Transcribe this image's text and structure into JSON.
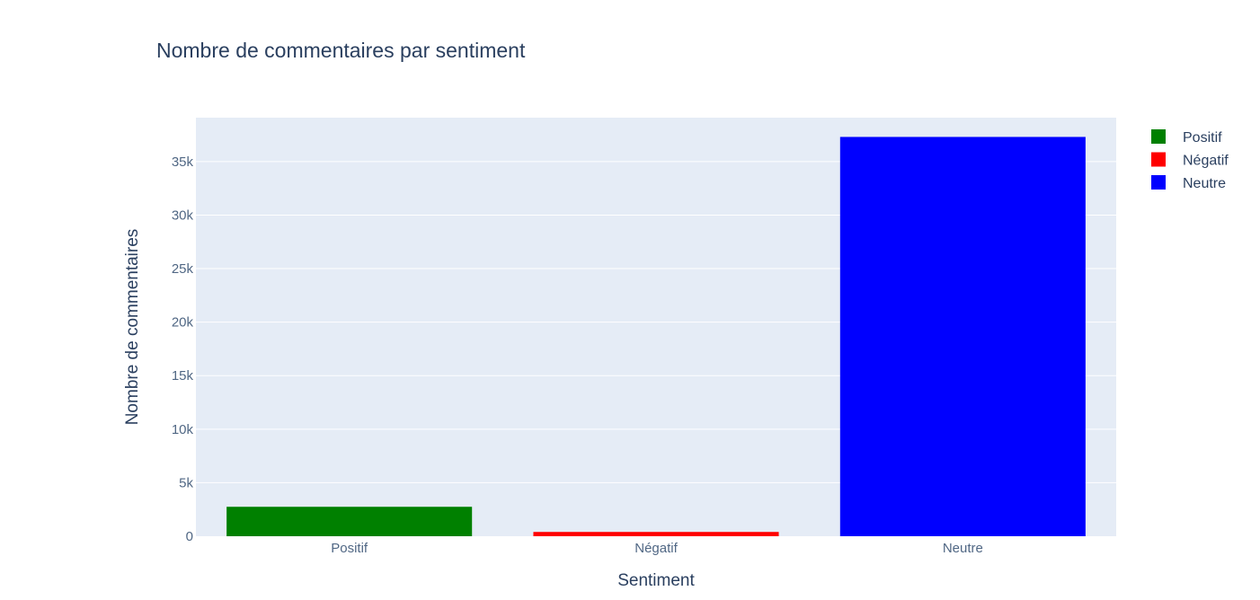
{
  "chart_data": {
    "type": "bar",
    "title": "Nombre de commentaires par sentiment",
    "xlabel": "Sentiment",
    "ylabel": "Nombre de commentaires",
    "categories": [
      "Positif",
      "Négatif",
      "Neutre"
    ],
    "series": [
      {
        "name": "Positif",
        "color": "#008000",
        "values": [
          2750,
          null,
          null
        ]
      },
      {
        "name": "Négatif",
        "color": "#ff0000",
        "values": [
          null,
          400,
          null
        ]
      },
      {
        "name": "Neutre",
        "color": "#0000ff",
        "values": [
          null,
          null,
          37300
        ]
      }
    ],
    "ylim": [
      0,
      39100
    ],
    "yticks": [
      0,
      5000,
      10000,
      15000,
      20000,
      25000,
      30000,
      35000
    ],
    "ytick_labels": [
      "0",
      "5k",
      "10k",
      "15k",
      "20k",
      "25k",
      "30k",
      "35k"
    ],
    "grid": true,
    "legend_position": "top-right",
    "plot_background": "#e5ecf6"
  }
}
